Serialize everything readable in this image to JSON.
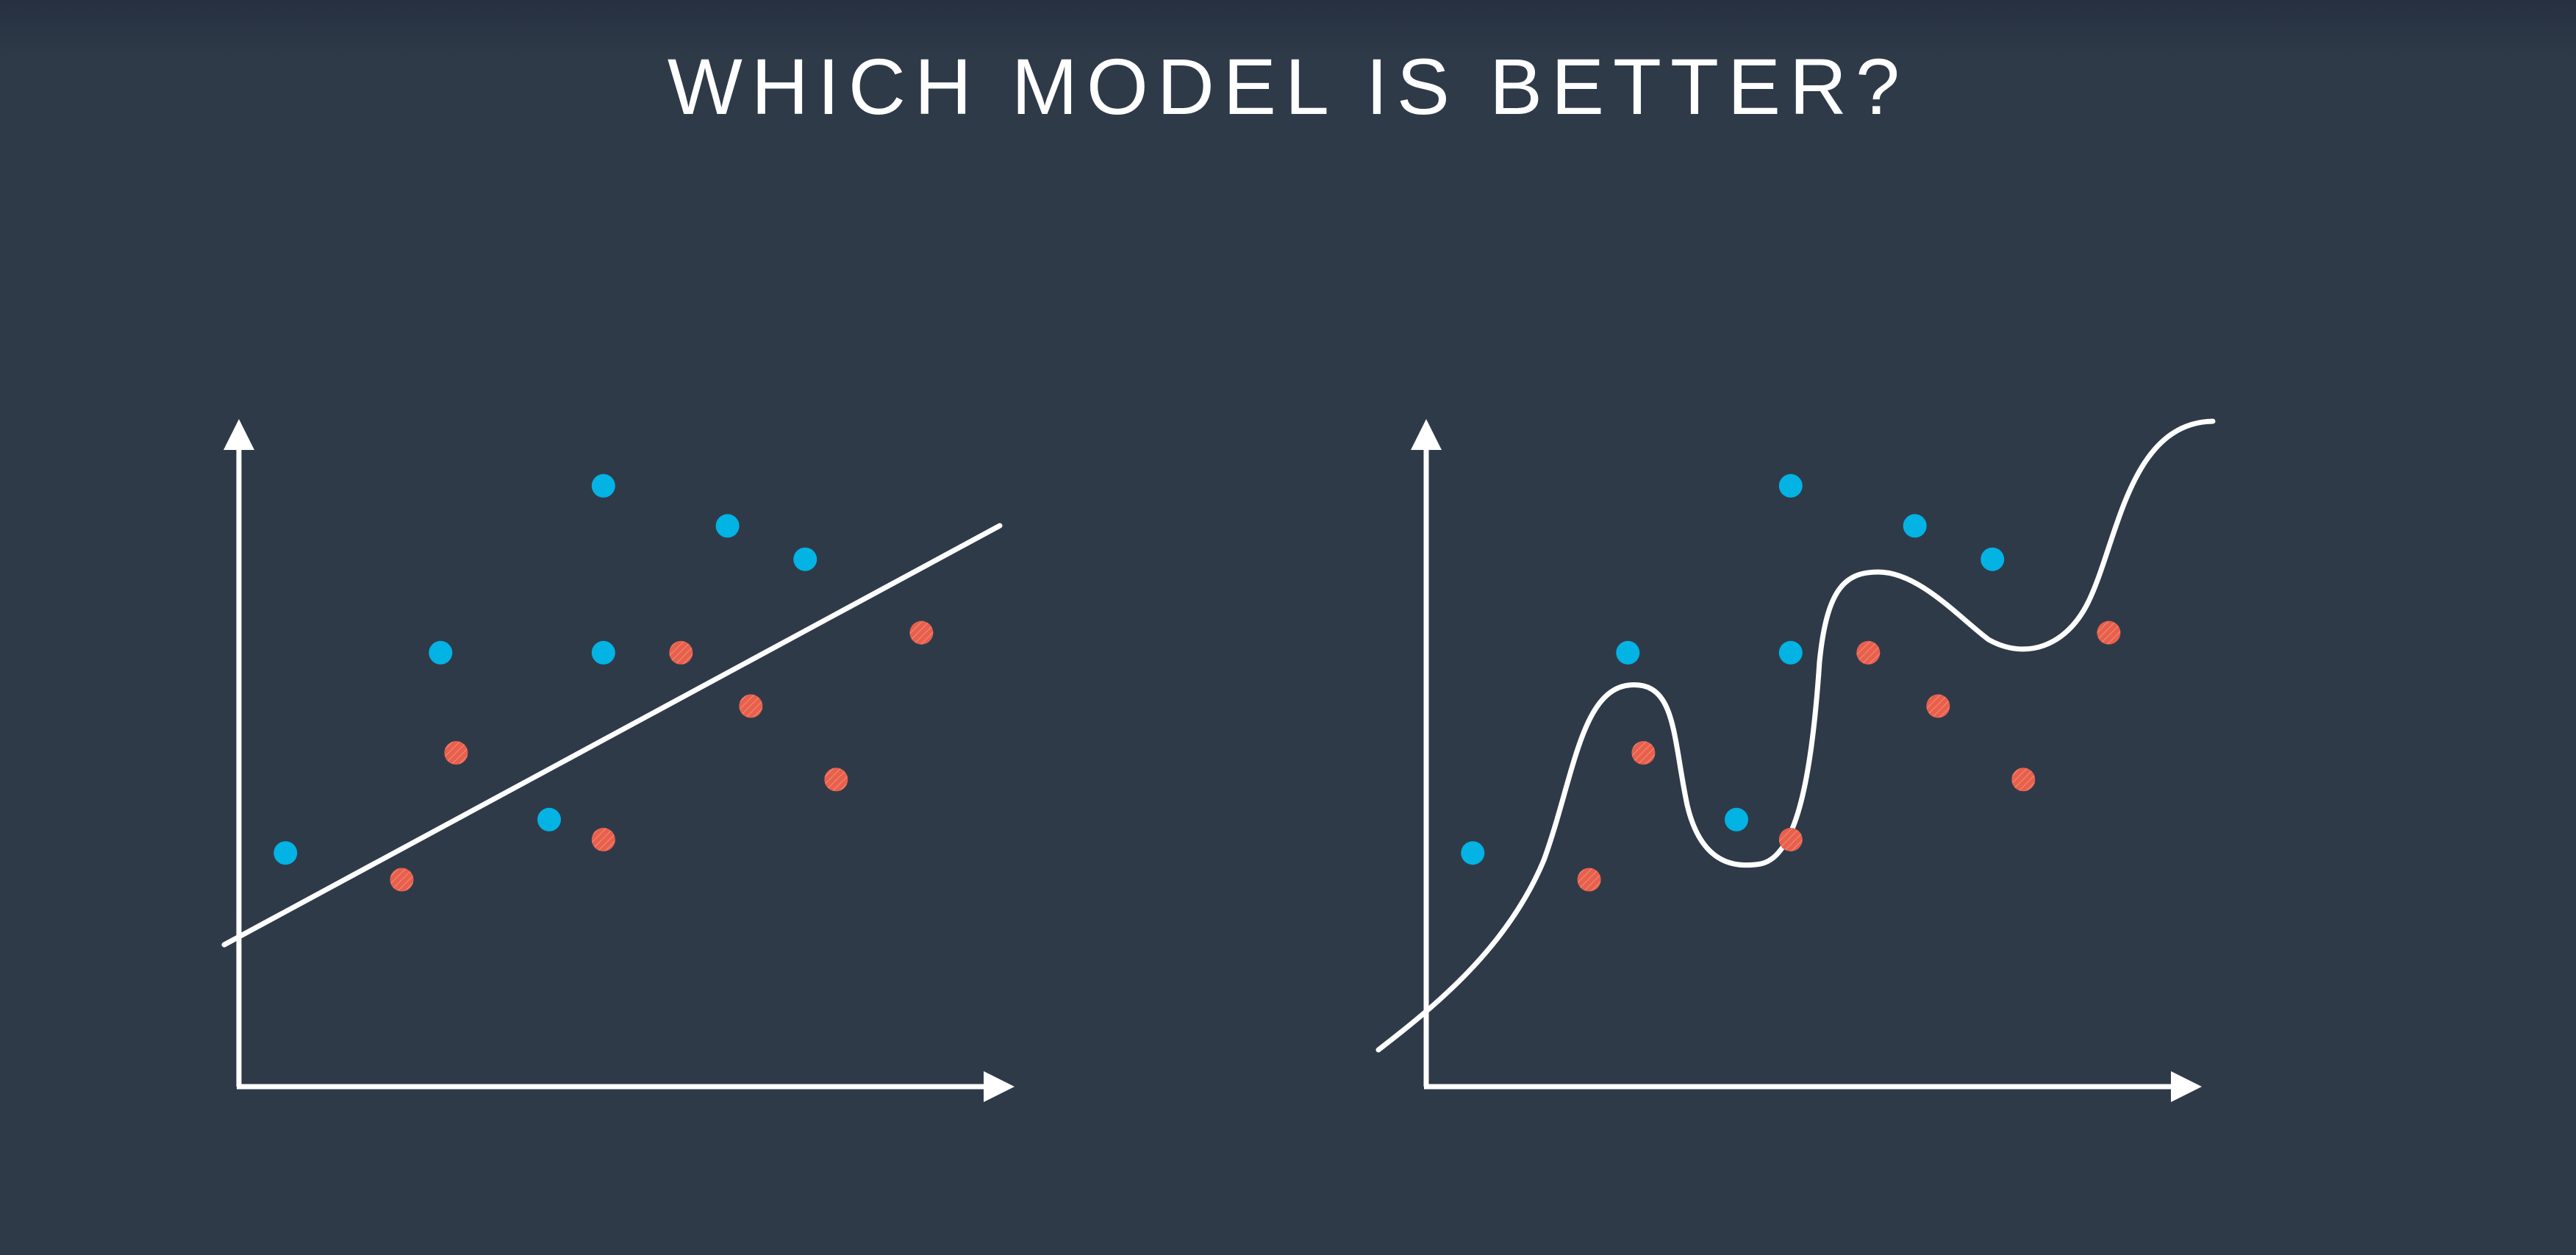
{
  "title": "WHICH MODEL IS BETTER?",
  "colors": {
    "background": "#2f3a49",
    "axis": "#ffffff",
    "blue_point": "#02b3e4",
    "red_point": "#e8604c",
    "model_line": "#ffffff"
  },
  "diagrams": [
    {
      "name": "linear-model",
      "model": "straight line",
      "blue_points": [
        [
          0.06,
          0.35
        ],
        [
          0.26,
          0.65
        ],
        [
          0.4,
          0.4
        ],
        [
          0.47,
          0.9
        ],
        [
          0.47,
          0.65
        ],
        [
          0.63,
          0.84
        ],
        [
          0.73,
          0.79
        ]
      ],
      "red_points": [
        [
          0.21,
          0.31
        ],
        [
          0.28,
          0.5
        ],
        [
          0.47,
          0.37
        ],
        [
          0.57,
          0.65
        ],
        [
          0.66,
          0.57
        ],
        [
          0.77,
          0.46
        ],
        [
          0.88,
          0.68
        ]
      ]
    },
    {
      "name": "wiggly-model",
      "model": "curve",
      "blue_points": [
        [
          0.06,
          0.35
        ],
        [
          0.26,
          0.65
        ],
        [
          0.4,
          0.4
        ],
        [
          0.47,
          0.9
        ],
        [
          0.47,
          0.65
        ],
        [
          0.63,
          0.84
        ],
        [
          0.73,
          0.79
        ]
      ],
      "red_points": [
        [
          0.21,
          0.31
        ],
        [
          0.28,
          0.5
        ],
        [
          0.47,
          0.37
        ],
        [
          0.57,
          0.65
        ],
        [
          0.66,
          0.57
        ],
        [
          0.77,
          0.46
        ],
        [
          0.88,
          0.68
        ]
      ]
    }
  ]
}
